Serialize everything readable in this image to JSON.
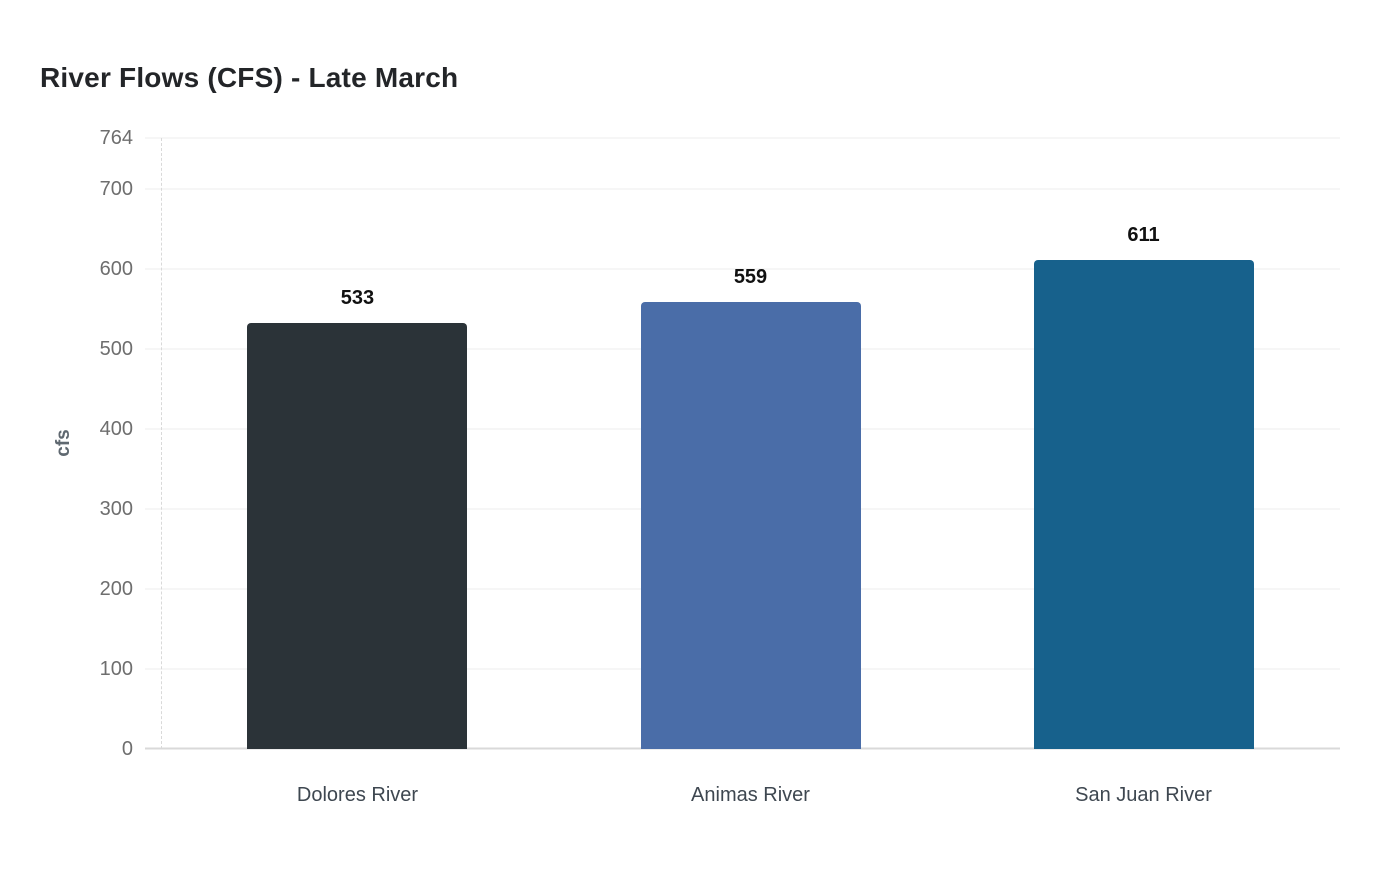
{
  "chart_data": {
    "type": "bar",
    "title": "River Flows (CFS) - Late March",
    "xlabel": "",
    "ylabel": "cfs",
    "categories": [
      "Dolores River",
      "Animas River",
      "San Juan River"
    ],
    "values": [
      533,
      559,
      611
    ],
    "value_labels": [
      "533",
      "559",
      "611"
    ],
    "bar_colors": [
      "#2b3338",
      "#4a6da8",
      "#17618c"
    ],
    "yticks": [
      0,
      100,
      200,
      300,
      400,
      500,
      600,
      700,
      764
    ],
    "ylim": [
      0,
      764
    ],
    "grid": "horizontal",
    "legend_position": "none",
    "colors": {
      "title": "#232528",
      "axis_title": "#5f6870",
      "tick_label": "#6e6e6e",
      "category_label": "#3e4750",
      "value_label": "#111111",
      "gridline": "#ececec",
      "baseline": "#d9d9d9",
      "axis_dash": "#d9d9d9",
      "background": "#ffffff"
    }
  }
}
